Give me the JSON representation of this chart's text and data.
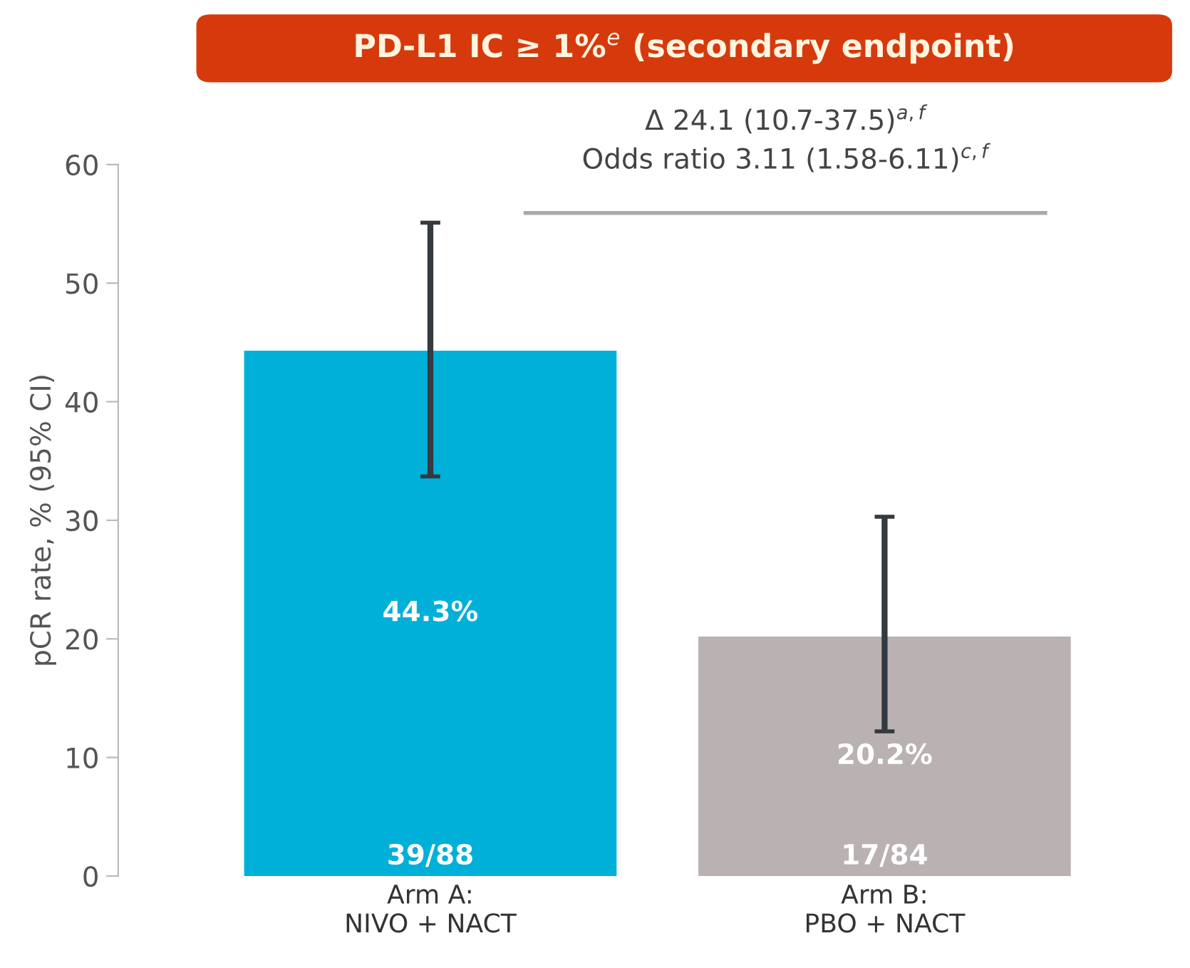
{
  "chart_data": {
    "type": "bar",
    "title": "PD-L1 IC ≥ 1%$^{e}$ (secondary endpoint)",
    "ylabel": "pCR rate, % (95% CI)",
    "categories": [
      "Arm A:\nNIVO + NACT",
      "Arm B:\nPBO + NACT"
    ],
    "values": [
      44.3,
      20.2
    ],
    "colors": [
      "#00b0d8",
      "#bab2b2"
    ],
    "errors": [
      [
        33.7,
        55.1
      ],
      [
        12.2,
        30.3
      ]
    ],
    "value_labels": [
      "44.3%",
      "20.2%"
    ],
    "ylim": [
      0,
      60
    ],
    "yticks": [
      0,
      10,
      20,
      30,
      40,
      50,
      60
    ],
    "grid": false,
    "legend": false,
    "annotations": [
      "Δ 24.1 (10.7-37.5)$^{a,f}$",
      "Odds ratio 3.11 (1.58-6.11)$^{c,f}$",
      {
        "text": "39/88",
        "x": "Arm A:\nNIVO + NACT",
        "y": 0
      },
      {
        "text": "17/84",
        "x": "Arm B:\nPBO + NACT",
        "y": 0
      }
    ]
  }
}
